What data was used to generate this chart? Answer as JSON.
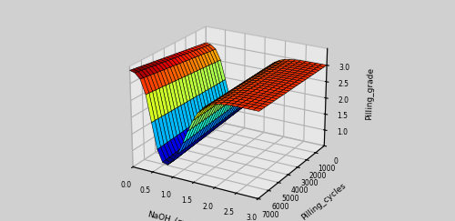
{
  "x_label": "NaOH_(mol/L)",
  "y_label": "Pilling_cycles",
  "z_label": "Pilling_grade",
  "x_ticks": [
    0,
    0.5,
    1,
    1.5,
    2,
    2.5,
    3
  ],
  "y_ticks": [
    0,
    1000,
    2000,
    3000,
    4000,
    5000,
    6000,
    7000
  ],
  "z_ticks": [
    1,
    1.5,
    2,
    2.5,
    3
  ],
  "elev": 22,
  "azim": -60,
  "fig_bg": "#d0d0d0"
}
